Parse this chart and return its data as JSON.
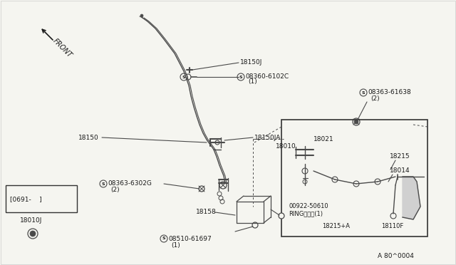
{
  "bg_color": "#f5f5f0",
  "line_color": "#4a4a4a",
  "text_color": "#1a1a1a",
  "fig_width": 6.4,
  "fig_height": 3.72,
  "dpi": 100,
  "labels": {
    "front": "FRONT",
    "l18150J": "18150J",
    "l08360": "08360-6102C",
    "l08360b": "(1)",
    "l08363_61638": "08363-61638",
    "l08363_61638b": "(2)",
    "l18150": "18150",
    "l18150JA": "18150JA",
    "l18010": "18010",
    "l08363_6302G": "08363-6302G",
    "l08363_6302Gb": "(2)",
    "l18021": "18021",
    "l18215": "18215",
    "l18014": "18014",
    "l00922a": "00922-50610",
    "l00922b": "RINGリング(1)",
    "l18215A": "18215+A",
    "l18110F": "18110F",
    "l18158": "18158",
    "l08510": "08510-61697",
    "l08510b": "(1)",
    "l0691": "[0691-    ]",
    "l18010J": "18010J",
    "ref_code": "A 80^0004"
  }
}
